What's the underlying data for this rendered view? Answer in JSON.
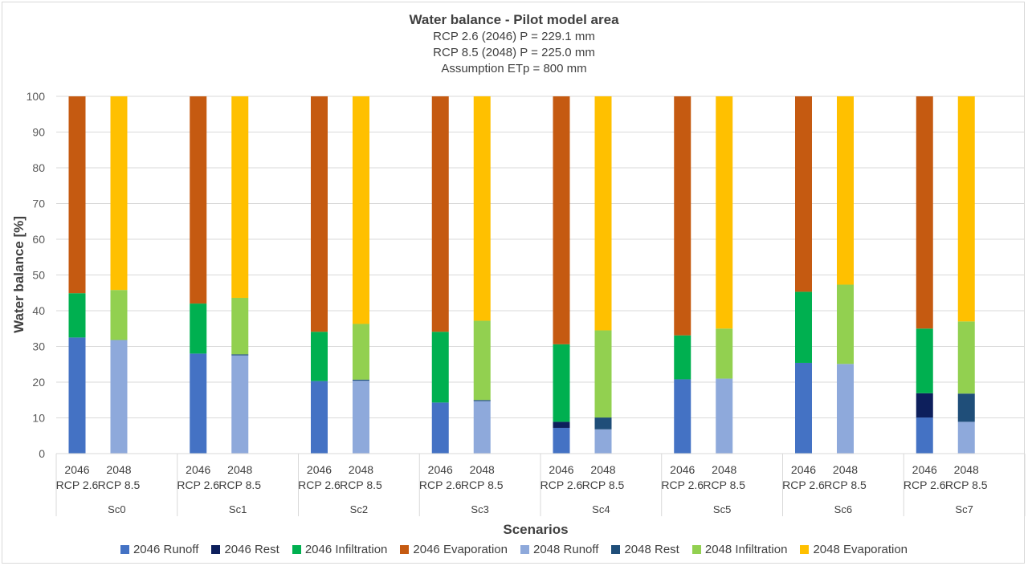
{
  "chart_data": {
    "type": "bar",
    "stacked": true,
    "title": "Water balance - Pilot model area",
    "subtitles": [
      "RCP 2.6 (2046) P = 229.1 mm",
      "RCP 8.5 (2048) P = 225.0 mm",
      "Assumption ETp = 800 mm"
    ],
    "xlabel": "Scenarios",
    "ylabel": "Water balance [%]",
    "ylim": [
      0,
      100
    ],
    "yticks": [
      0,
      10,
      20,
      30,
      40,
      50,
      60,
      70,
      80,
      90,
      100
    ],
    "grid": true,
    "legend_position": "bottom",
    "scenarios": [
      "Sc0",
      "Sc1",
      "Sc2",
      "Sc3",
      "Sc4",
      "Sc5",
      "Sc6",
      "Sc7"
    ],
    "bar_labels": [
      {
        "line1": "2046",
        "line2": "RCP 2.6"
      },
      {
        "line1": "2048",
        "line2": "RCP 8.5"
      }
    ],
    "series": [
      {
        "name": "2046 Runoff",
        "group": 0,
        "color": "#4472C4",
        "values": [
          32.5,
          28,
          20.3,
          14.3,
          7.2,
          20.8,
          25.4,
          10.1
        ]
      },
      {
        "name": "2046 Rest",
        "group": 0,
        "color": "#0D1F5C",
        "values": [
          0,
          0,
          0,
          0,
          1.7,
          0,
          0,
          6.8
        ]
      },
      {
        "name": "2046 Infiltration",
        "group": 0,
        "color": "#00B050",
        "values": [
          12.4,
          14,
          13.8,
          19.8,
          21.7,
          12.3,
          19.9,
          18.1
        ]
      },
      {
        "name": "2046 Evaporation",
        "group": 0,
        "color": "#C55A11",
        "values": [
          55.1,
          58,
          65.9,
          65.9,
          69.4,
          66.9,
          54.7,
          65
        ]
      },
      {
        "name": "2048 Runoff",
        "group": 1,
        "color": "#8EA9DB",
        "values": [
          31.8,
          27.5,
          20.4,
          14.7,
          6.8,
          21,
          25.1,
          8.9
        ]
      },
      {
        "name": "2048 Rest",
        "group": 1,
        "color": "#1F4E79",
        "values": [
          0,
          0.3,
          0.3,
          0.3,
          3.3,
          0,
          0,
          7.9
        ]
      },
      {
        "name": "2048 Infiltration",
        "group": 1,
        "color": "#92D050",
        "values": [
          14,
          15.8,
          15.6,
          22.2,
          24.4,
          14,
          22.2,
          20.2
        ]
      },
      {
        "name": "2048 Evaporation",
        "group": 1,
        "color": "#FFC000",
        "values": [
          54.2,
          56.4,
          63.7,
          62.8,
          65.5,
          65,
          52.7,
          63
        ]
      }
    ]
  }
}
